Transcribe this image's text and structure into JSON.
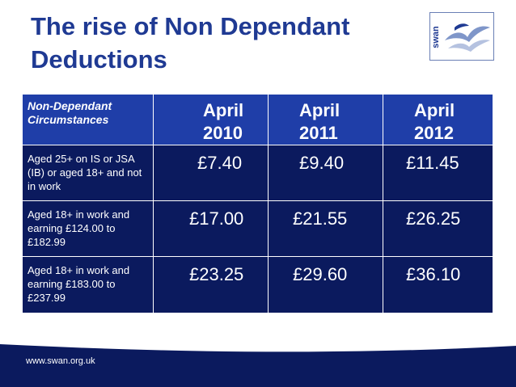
{
  "title": "The rise of Non Dependant Deductions",
  "logo": {
    "text": "swan",
    "icon": "seagull-logo"
  },
  "table": {
    "header": {
      "label": "Non-Dependant Circumstances",
      "columns": [
        "April 2010",
        "April 2011",
        "April 2012"
      ]
    },
    "rows": [
      {
        "label": "Aged 25+ on IS or JSA (IB) or aged 18+ and not in work",
        "values": [
          "£7.40",
          "£9.40",
          "£11.45"
        ]
      },
      {
        "label": "Aged 18+ in work and earning £124.00 to £182.99",
        "values": [
          "£17.00",
          "£21.55",
          "£26.25"
        ]
      },
      {
        "label": "Aged 18+ in work and earning £183.00 to £237.99",
        "values": [
          "£23.25",
          "£29.60",
          "£36.10"
        ]
      }
    ]
  },
  "footer": {
    "url": "www.swan.org.uk"
  },
  "colors": {
    "title": "#1f3a93",
    "header_bg": "#1f3ea8",
    "body_bg": "#0b1a5e",
    "footer_bg": "#0b1a5e"
  }
}
